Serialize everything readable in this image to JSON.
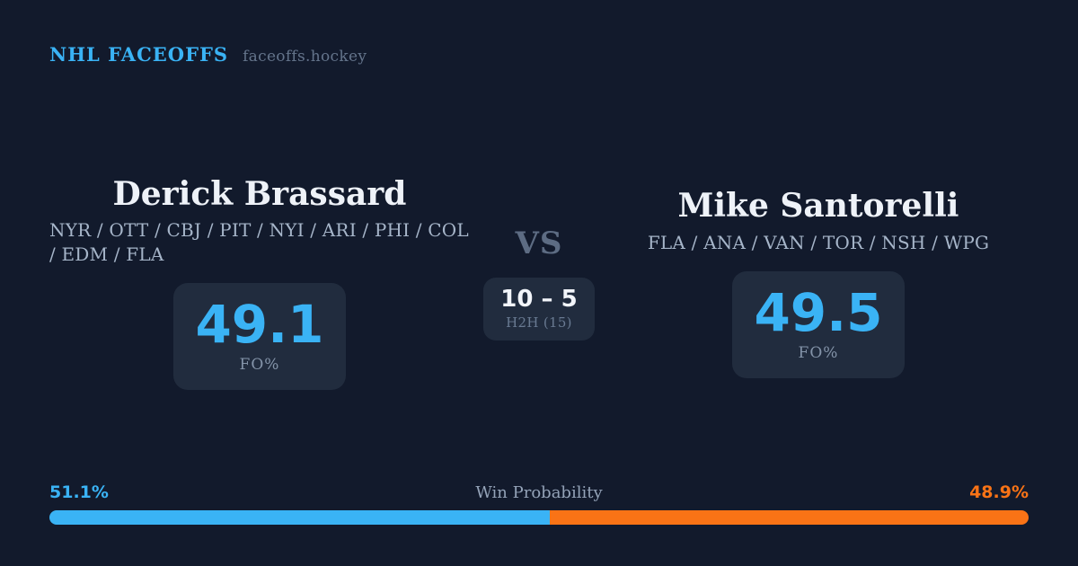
{
  "header": {
    "brand": "NHL FACEOFFS",
    "site": "faceoffs.hockey"
  },
  "matchup": {
    "vs_label": "VS",
    "h2h": {
      "score": "10 – 5",
      "label": "H2H (15)"
    },
    "players": [
      {
        "name": "Derick Brassard",
        "teams": "NYR / OTT / CBJ / PIT / NYI / ARI / PHI / COL / EDM / FLA",
        "fo_value": "49.1",
        "fo_label": "FO%"
      },
      {
        "name": "Mike Santorelli",
        "teams": "FLA / ANA / VAN / TOR / NSH / WPG",
        "fo_value": "49.5",
        "fo_label": "FO%"
      }
    ]
  },
  "win_probability": {
    "title": "Win Probability",
    "left_label": "51.1%",
    "right_label": "48.9%",
    "left_value": 51.1,
    "right_value": 48.9
  },
  "colors": {
    "background": "#121a2c",
    "box": "#212c3e",
    "accent_blue": "#3ab3f5",
    "accent_orange": "#f97316"
  },
  "chart_data": [
    {
      "type": "bar",
      "title": "Win Probability",
      "orientation": "horizontal-stacked",
      "categories": [
        "Derick Brassard",
        "Mike Santorelli"
      ],
      "values": [
        51.1,
        48.9
      ],
      "unit": "%",
      "colors": [
        "#3ab3f5",
        "#f97316"
      ],
      "value_labels": [
        "51.1%",
        "48.9%"
      ],
      "xlim": [
        0,
        100
      ]
    },
    {
      "type": "table",
      "title": "Faceoff percentage (FO%)",
      "categories": [
        "Derick Brassard",
        "Mike Santorelli"
      ],
      "values": [
        49.1,
        49.5
      ],
      "unit": "%",
      "annotations": [
        "Head-to-head: 10 – 5 over 15 faceoffs"
      ]
    }
  ]
}
